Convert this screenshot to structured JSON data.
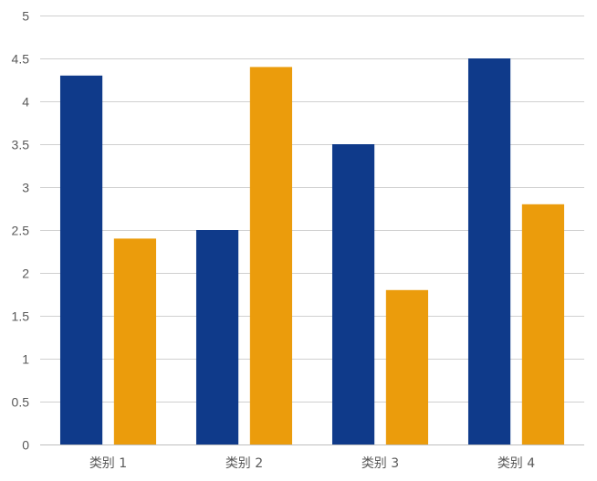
{
  "chart_data": {
    "type": "bar",
    "title": "",
    "xlabel": "",
    "ylabel": "",
    "categories": [
      "类别 1",
      "类别 2",
      "类别 3",
      "类别 4"
    ],
    "series": [
      {
        "values": [
          4.3,
          2.5,
          3.5,
          4.5
        ],
        "color": "#0f3a8a"
      },
      {
        "values": [
          2.4,
          4.4,
          1.8,
          2.8
        ],
        "color": "#eb9c0c"
      }
    ],
    "ylim": [
      0,
      5
    ],
    "yticks": [
      "0",
      "0.5",
      "1",
      "1.5",
      "2",
      "2.5",
      "3",
      "3.5",
      "4",
      "4.5",
      "5"
    ],
    "grid": true,
    "legend": "none"
  }
}
